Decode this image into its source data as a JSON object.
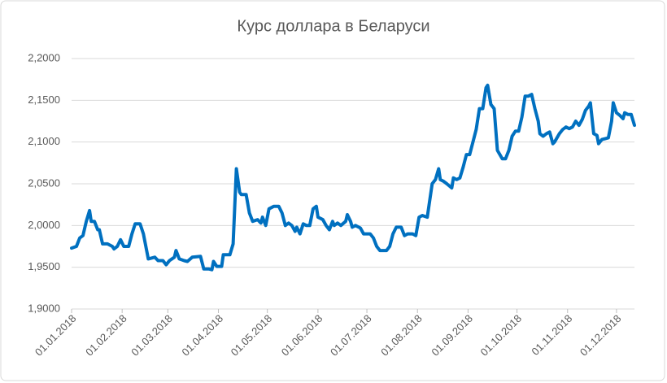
{
  "chart_data": {
    "type": "line",
    "title": "Курс доллара в Беларуси",
    "x": [
      "01.01.2018",
      "04.01.2018",
      "06.01.2018",
      "08.01.2018",
      "10.01.2018",
      "12.01.2018",
      "13.01.2018",
      "15.01.2018",
      "17.01.2018",
      "18.01.2018",
      "20.01.2018",
      "23.01.2018",
      "26.01.2018",
      "27.01.2018",
      "29.01.2018",
      "31.01.2018",
      "02.02.2018",
      "05.02.2018",
      "07.02.2018",
      "09.02.2018",
      "12.02.2018",
      "14.02.2018",
      "17.02.2018",
      "21.02.2018",
      "23.02.2018",
      "26.02.2018",
      "28.02.2018",
      "02.03.2018",
      "05.03.2018",
      "06.03.2018",
      "08.03.2018",
      "11.03.2018",
      "13.03.2018",
      "16.03.2018",
      "21.03.2018",
      "23.03.2018",
      "26.03.2018",
      "28.03.2018",
      "29.03.2018",
      "31.03.2018",
      "03.04.2018",
      "04.04.2018",
      "08.04.2018",
      "10.04.2018",
      "12.04.2018",
      "14.04.2018",
      "15.04.2018",
      "18.04.2018",
      "20.04.2018",
      "22.04.2018",
      "25.04.2018",
      "27.04.2018",
      "28.04.2018",
      "30.04.2018",
      "02.05.2018",
      "05.05.2018",
      "08.05.2018",
      "10.05.2018",
      "12.05.2018",
      "14.05.2018",
      "16.05.2018",
      "18.05.2018",
      "19.05.2018",
      "21.05.2018",
      "23.05.2018",
      "25.05.2018",
      "27.05.2018",
      "29.05.2018",
      "31.05.2018",
      "01.06.2018",
      "04.06.2018",
      "06.06.2018",
      "08.06.2018",
      "10.06.2018",
      "11.06.2018",
      "13.06.2018",
      "15.06.2018",
      "18.06.2018",
      "19.06.2018",
      "21.06.2018",
      "22.06.2018",
      "24.06.2018",
      "27.06.2018",
      "29.06.2018",
      "01.07.2018",
      "03.07.2018",
      "05.07.2018",
      "07.07.2018",
      "09.07.2018",
      "13.07.2018",
      "15.07.2018",
      "17.07.2018",
      "19.07.2018",
      "22.07.2018",
      "24.07.2018",
      "26.07.2018",
      "29.07.2018",
      "31.07.2018",
      "02.08.2018",
      "04.08.2018",
      "07.08.2018",
      "10.08.2018",
      "12.08.2018",
      "14.08.2018",
      "15.08.2018",
      "17.08.2018",
      "19.08.2018",
      "22.08.2018",
      "23.08.2018",
      "25.08.2018",
      "27.08.2018",
      "29.08.2018",
      "31.08.2018",
      "02.09.2018",
      "04.09.2018",
      "06.09.2018",
      "08.09.2018",
      "10.09.2018",
      "12.09.2018",
      "13.09.2018",
      "15.09.2018",
      "17.09.2018",
      "19.09.2018",
      "22.09.2018",
      "24.09.2018",
      "26.09.2018",
      "28.09.2018",
      "30.09.2018",
      "02.10.2018",
      "04.10.2018",
      "06.10.2018",
      "08.10.2018",
      "10.10.2018",
      "12.10.2018",
      "14.10.2018",
      "15.10.2018",
      "17.10.2018",
      "19.10.2018",
      "21.10.2018",
      "23.10.2018",
      "24.10.2018",
      "27.10.2018",
      "29.10.2018",
      "31.10.2018",
      "02.11.2018",
      "04.11.2018",
      "06.11.2018",
      "08.11.2018",
      "10.11.2018",
      "12.11.2018",
      "14.11.2018",
      "15.11.2018",
      "17.11.2018",
      "19.11.2018",
      "20.11.2018",
      "22.11.2018",
      "24.11.2018",
      "26.11.2018",
      "28.11.2018",
      "29.11.2018",
      "01.12.2018",
      "03.12.2018",
      "05.12.2018",
      "06.12.2018",
      "08.12.2018",
      "10.12.2018",
      "12.12.2018"
    ],
    "values": [
      1.973,
      1.975,
      1.985,
      1.988,
      2.005,
      2.018,
      2.005,
      2.005,
      1.995,
      1.995,
      1.978,
      1.978,
      1.975,
      1.972,
      1.975,
      1.983,
      1.975,
      1.975,
      1.99,
      2.002,
      2.002,
      1.99,
      1.96,
      1.962,
      1.958,
      1.958,
      1.953,
      1.958,
      1.962,
      1.97,
      1.96,
      1.958,
      1.957,
      1.962,
      1.963,
      1.948,
      1.948,
      1.947,
      1.957,
      1.951,
      1.951,
      1.965,
      1.965,
      1.978,
      2.068,
      2.04,
      2.037,
      2.037,
      2.015,
      2.005,
      2.007,
      2.003,
      2.01,
      2.0,
      2.02,
      2.023,
      2.023,
      2.015,
      2.0,
      2.003,
      2.0,
      1.993,
      1.998,
      1.99,
      2.002,
      2.0,
      2.0,
      2.02,
      2.023,
      2.01,
      2.007,
      2.0,
      1.995,
      2.005,
      2.0,
      2.003,
      2.0,
      2.005,
      2.013,
      2.005,
      1.998,
      2.0,
      1.997,
      1.99,
      1.99,
      1.99,
      1.985,
      1.975,
      1.97,
      1.97,
      1.975,
      1.99,
      1.998,
      1.998,
      1.988,
      1.99,
      1.99,
      1.988,
      2.01,
      2.012,
      2.01,
      2.05,
      2.055,
      2.068,
      2.055,
      2.053,
      2.05,
      2.045,
      2.057,
      2.055,
      2.057,
      2.07,
      2.085,
      2.085,
      2.1,
      2.115,
      2.14,
      2.14,
      2.165,
      2.168,
      2.145,
      2.14,
      2.09,
      2.08,
      2.08,
      2.09,
      2.107,
      2.113,
      2.113,
      2.13,
      2.155,
      2.155,
      2.157,
      2.14,
      2.125,
      2.11,
      2.107,
      2.11,
      2.112,
      2.098,
      2.1,
      2.11,
      2.115,
      2.118,
      2.116,
      2.118,
      2.125,
      2.12,
      2.127,
      2.138,
      2.143,
      2.147,
      2.11,
      2.108,
      2.098,
      2.103,
      2.104,
      2.105,
      2.125,
      2.147,
      2.135,
      2.132,
      2.128,
      2.135,
      2.133,
      2.133,
      2.12
    ],
    "color": "#0070c0",
    "xlim": [
      "01.01.2018",
      "12.12.2018"
    ],
    "xticks": [
      "01.01.2018",
      "01.02.2018",
      "01.03.2018",
      "01.04.2018",
      "01.05.2018",
      "01.06.2018",
      "01.07.2018",
      "01.08.2018",
      "01.09.2018",
      "01.10.2018",
      "01.11.2018",
      "01.12.2018"
    ],
    "ylim": [
      1.9,
      2.2
    ],
    "yticks": [
      {
        "value": 1.9,
        "label": "1,9000"
      },
      {
        "value": 1.95,
        "label": "1,9500"
      },
      {
        "value": 2.0,
        "label": "2,0000"
      },
      {
        "value": 2.05,
        "label": "2,0500"
      },
      {
        "value": 2.1,
        "label": "2,1000"
      },
      {
        "value": 2.15,
        "label": "2,1500"
      },
      {
        "value": 2.2,
        "label": "2,2000"
      }
    ],
    "grid": true
  }
}
